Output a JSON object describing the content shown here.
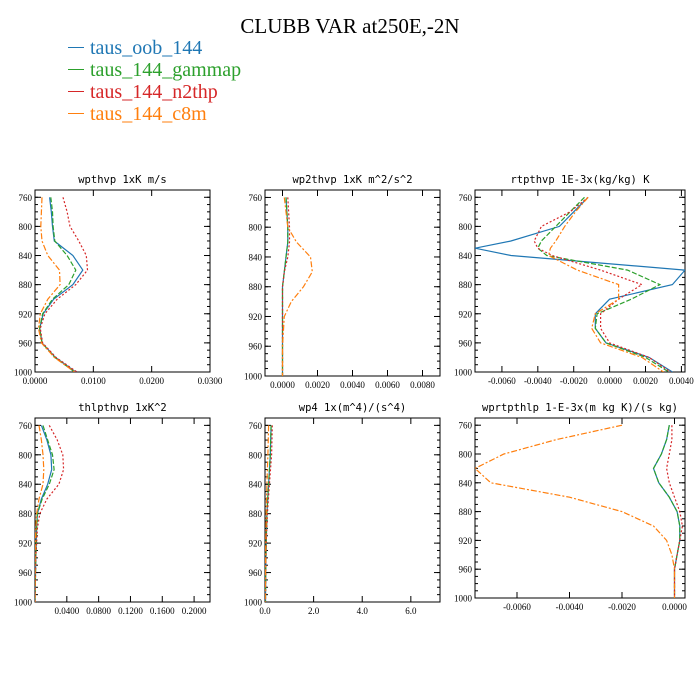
{
  "title": "CLUBB VAR at250E,-2N",
  "legend": [
    {
      "label": "taus_oob_144",
      "color": "#1f77b4",
      "dash": ""
    },
    {
      "label": "taus_144_gammap",
      "color": "#2ca02c",
      "dash": "5,2"
    },
    {
      "label": "taus_144_n2thp",
      "color": "#d62728",
      "dash": "2,2"
    },
    {
      "label": "taus_144_c8m",
      "color": "#ff7f0e",
      "dash": "6,2,2,2"
    }
  ],
  "chart_data": [
    {
      "type": "line",
      "title": "wpthvp   1xK m/s",
      "xlim": [
        0,
        0.03
      ],
      "ylim": [
        1000,
        750
      ],
      "xticks": [
        "0.0000",
        "0.0100",
        "0.0200",
        "0.0300"
      ],
      "yticks": [
        "760",
        "800",
        "840",
        "880",
        "920",
        "960",
        "1000"
      ],
      "y": [
        760,
        780,
        800,
        820,
        840,
        860,
        880,
        900,
        920,
        940,
        960,
        980,
        1000
      ],
      "series": [
        {
          "name": "taus_oob_144",
          "values": [
            0.0025,
            0.0028,
            0.003,
            0.0033,
            0.0065,
            0.0082,
            0.0065,
            0.0032,
            0.0014,
            0.0008,
            0.0012,
            0.0035,
            0.007
          ]
        },
        {
          "name": "taus_144_gammap",
          "values": [
            0.0027,
            0.003,
            0.0031,
            0.0034,
            0.0055,
            0.007,
            0.0058,
            0.003,
            0.0013,
            0.0008,
            0.0012,
            0.0034,
            0.0068
          ]
        },
        {
          "name": "taus_144_n2thp",
          "values": [
            0.0048,
            0.0055,
            0.006,
            0.0075,
            0.0088,
            0.009,
            0.007,
            0.0038,
            0.0017,
            0.0009,
            0.0013,
            0.0036,
            0.0072
          ]
        },
        {
          "name": "taus_144_c8m",
          "values": [
            0.0012,
            0.0011,
            0.001,
            0.0012,
            0.0022,
            0.0042,
            0.0043,
            0.0022,
            0.0009,
            0.0006,
            0.0011,
            0.0033,
            0.0068
          ]
        }
      ]
    },
    {
      "type": "line",
      "title": "wp2thvp   1xK m^2/s^2",
      "xlim": [
        -0.001,
        0.009
      ],
      "ylim": [
        1000,
        750
      ],
      "xticks": [
        "0.0000",
        "0.0020",
        "0.0040",
        "0.0060",
        "0.0080"
      ],
      "yticks": [
        "760",
        "800",
        "840",
        "880",
        "920",
        "960",
        "1000"
      ],
      "y": [
        760,
        800,
        820,
        840,
        860,
        880,
        900,
        920,
        960,
        1000
      ],
      "series": [
        {
          "name": "taus_oob_144",
          "values": [
            0.0002,
            0.0003,
            0.0003,
            0.0002,
            0.0001,
            0.0,
            0.0,
            0.0,
            0.0,
            0.0
          ]
        },
        {
          "name": "taus_144_gammap",
          "values": [
            0.0002,
            0.0003,
            0.0003,
            0.0002,
            0.0001,
            0.0,
            0.0,
            0.0,
            0.0,
            0.0
          ]
        },
        {
          "name": "taus_144_n2thp",
          "values": [
            0.0003,
            0.0004,
            0.0004,
            0.0003,
            0.0001,
            0.0,
            0.0,
            0.0,
            0.0,
            0.0
          ]
        },
        {
          "name": "taus_144_c8m",
          "values": [
            0.0001,
            0.0003,
            0.0008,
            0.0016,
            0.0017,
            0.0012,
            0.0005,
            0.0001,
            0.0,
            0.0
          ]
        }
      ]
    },
    {
      "type": "line",
      "title": "rtpthvp   1E-3x(kg/kg) K",
      "xlim": [
        -0.0075,
        0.0042
      ],
      "ylim": [
        1000,
        750
      ],
      "xticks": [
        "-0.0060",
        "-0.0040",
        "-0.0020",
        "0.0000",
        "0.0020",
        "0.0040"
      ],
      "yticks": [
        "760",
        "800",
        "840",
        "880",
        "920",
        "960",
        "1000"
      ],
      "y": [
        760,
        780,
        800,
        820,
        830,
        840,
        860,
        880,
        900,
        920,
        940,
        960,
        980,
        1000
      ],
      "series": [
        {
          "name": "taus_oob_144",
          "values": [
            -0.0012,
            -0.002,
            -0.0028,
            -0.0055,
            -0.0075,
            -0.0055,
            0.0042,
            0.0035,
            0.0,
            -0.0008,
            -0.0008,
            -0.0002,
            0.0022,
            0.0035
          ]
        },
        {
          "name": "taus_144_gammap",
          "values": [
            -0.0014,
            -0.0022,
            -0.003,
            -0.0038,
            -0.004,
            -0.0035,
            0.001,
            0.0028,
            0.0012,
            -0.0007,
            -0.0008,
            -0.0002,
            0.002,
            0.0033
          ]
        },
        {
          "name": "taus_144_n2thp",
          "values": [
            -0.0012,
            -0.0022,
            -0.0038,
            -0.0042,
            -0.004,
            -0.0032,
            -0.0005,
            0.0018,
            0.0005,
            -0.0005,
            -0.0005,
            0.0,
            0.0022,
            0.0034
          ]
        },
        {
          "name": "taus_144_c8m",
          "values": [
            -0.0012,
            -0.0019,
            -0.0025,
            -0.003,
            -0.0033,
            -0.0034,
            -0.0018,
            0.0005,
            0.0005,
            -0.0008,
            -0.001,
            -0.0005,
            0.0018,
            0.003
          ]
        }
      ]
    },
    {
      "type": "line",
      "title": "thlpthvp   1xK^2",
      "xlim": [
        0,
        0.22
      ],
      "ylim": [
        1000,
        750
      ],
      "xticks": [
        "0.0400",
        "0.0800",
        "0.1200",
        "0.1600",
        "0.2000"
      ],
      "yticks": [
        "760",
        "800",
        "840",
        "880",
        "920",
        "960",
        "1000"
      ],
      "y": [
        760,
        780,
        800,
        820,
        840,
        860,
        880,
        900,
        940,
        1000
      ],
      "series": [
        {
          "name": "taus_oob_144",
          "values": [
            0.008,
            0.015,
            0.02,
            0.021,
            0.016,
            0.008,
            0.003,
            0.002,
            0.001,
            0.0
          ]
        },
        {
          "name": "taus_144_gammap",
          "values": [
            0.01,
            0.016,
            0.022,
            0.024,
            0.018,
            0.009,
            0.003,
            0.002,
            0.001,
            0.0
          ]
        },
        {
          "name": "taus_144_n2thp",
          "values": [
            0.018,
            0.028,
            0.035,
            0.036,
            0.03,
            0.015,
            0.006,
            0.003,
            0.001,
            0.0
          ]
        },
        {
          "name": "taus_144_c8m",
          "values": [
            0.005,
            0.008,
            0.01,
            0.011,
            0.01,
            0.005,
            0.002,
            0.001,
            0.0,
            0.0
          ]
        }
      ]
    },
    {
      "type": "line",
      "title": "wp4   1x(m^4)/(s^4)",
      "xlim": [
        0,
        7.2
      ],
      "ylim": [
        1000,
        750
      ],
      "xticks": [
        "0.0",
        "2.0",
        "4.0",
        "6.0"
      ],
      "yticks": [
        "760",
        "800",
        "840",
        "880",
        "920",
        "960",
        "1000"
      ],
      "y": [
        760,
        800,
        840,
        880,
        920,
        960,
        1000
      ],
      "series": [
        {
          "name": "taus_oob_144",
          "values": [
            0.25,
            0.22,
            0.15,
            0.08,
            0.05,
            0.03,
            0.02
          ]
        },
        {
          "name": "taus_144_gammap",
          "values": [
            0.25,
            0.22,
            0.15,
            0.08,
            0.05,
            0.03,
            0.02
          ]
        },
        {
          "name": "taus_144_n2thp",
          "values": [
            0.3,
            0.27,
            0.18,
            0.1,
            0.05,
            0.03,
            0.02
          ]
        },
        {
          "name": "taus_144_c8m",
          "values": [
            0.15,
            0.12,
            0.08,
            0.05,
            0.03,
            0.02,
            0.01
          ]
        }
      ]
    },
    {
      "type": "line",
      "title": "wprtpthlp   1-E-3x(m kg K)/(s kg)",
      "xlim": [
        -0.0076,
        0.0004
      ],
      "ylim": [
        1000,
        750
      ],
      "xticks": [
        "-0.0060",
        "-0.0040",
        "-0.0020",
        "0.0000"
      ],
      "yticks": [
        "760",
        "800",
        "840",
        "880",
        "920",
        "960",
        "1000"
      ],
      "y": [
        760,
        780,
        800,
        820,
        840,
        860,
        880,
        900,
        920,
        940,
        960,
        980,
        1000
      ],
      "series": [
        {
          "name": "taus_oob_144",
          "values": [
            -0.0002,
            -0.0003,
            -0.0005,
            -0.0008,
            -0.0006,
            -0.0002,
            0.0001,
            0.0002,
            0.0002,
            0.0001,
            0.0,
            0.0,
            0.0
          ]
        },
        {
          "name": "taus_144_gammap",
          "values": [
            -0.0002,
            -0.0003,
            -0.0005,
            -0.0008,
            -0.0006,
            -0.0002,
            0.0001,
            0.0002,
            0.0002,
            0.0001,
            0.0,
            0.0,
            0.0
          ]
        },
        {
          "name": "taus_144_n2thp",
          "values": [
            -0.0001,
            -0.0001,
            -0.0002,
            -0.0003,
            -0.0002,
            0.0,
            0.0002,
            0.0003,
            0.0002,
            0.0001,
            0.0,
            0.0,
            0.0
          ]
        },
        {
          "name": "taus_144_c8m",
          "values": [
            -0.002,
            -0.0045,
            -0.0065,
            -0.0076,
            -0.007,
            -0.004,
            -0.002,
            -0.0008,
            -0.0003,
            -0.0001,
            0.0,
            0.0,
            0.0
          ]
        }
      ]
    }
  ]
}
